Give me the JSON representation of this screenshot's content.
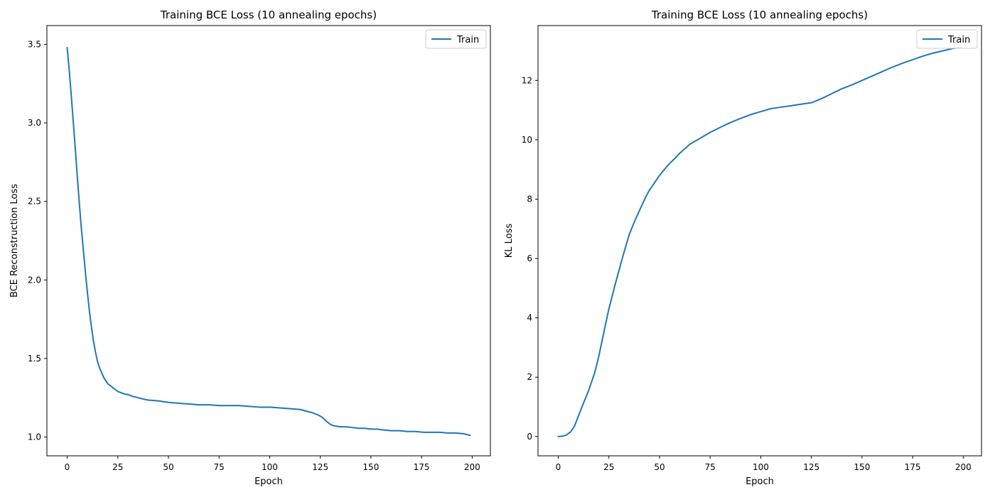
{
  "chart_data": [
    {
      "type": "line",
      "title": "Training BCE Loss (10 annealing epochs)",
      "xlabel": "Epoch",
      "ylabel": "BCE Reconstruction Loss",
      "xlim": [
        -10,
        209
      ],
      "ylim": [
        0.88,
        3.62
      ],
      "xticks": [
        0,
        25,
        50,
        75,
        100,
        125,
        150,
        175,
        200
      ],
      "yticks": [
        1.0,
        1.5,
        2.0,
        2.5,
        3.0,
        3.5
      ],
      "legend": "top-right",
      "series": [
        {
          "name": "Train",
          "color": "#1f77b4",
          "x": [
            0,
            1,
            2,
            3,
            4,
            5,
            6,
            7,
            8,
            9,
            10,
            11,
            12,
            13,
            14,
            15,
            16,
            17,
            18,
            19,
            20,
            21,
            22,
            23,
            24,
            25,
            26,
            27,
            28,
            30,
            32,
            35,
            38,
            40,
            45,
            50,
            55,
            60,
            65,
            70,
            75,
            80,
            85,
            90,
            95,
            100,
            105,
            110,
            115,
            118,
            121,
            124,
            126,
            128,
            130,
            132,
            135,
            138,
            141,
            144,
            147,
            150,
            153,
            156,
            160,
            164,
            168,
            172,
            176,
            180,
            184,
            188,
            192,
            196,
            199
          ],
          "values": [
            3.48,
            3.34,
            3.18,
            3.01,
            2.84,
            2.66,
            2.49,
            2.33,
            2.19,
            2.05,
            1.92,
            1.8,
            1.7,
            1.61,
            1.54,
            1.48,
            1.44,
            1.41,
            1.38,
            1.36,
            1.34,
            1.33,
            1.32,
            1.31,
            1.3,
            1.29,
            1.285,
            1.28,
            1.275,
            1.27,
            1.26,
            1.25,
            1.24,
            1.235,
            1.23,
            1.22,
            1.215,
            1.21,
            1.205,
            1.205,
            1.2,
            1.2,
            1.2,
            1.195,
            1.19,
            1.19,
            1.185,
            1.18,
            1.175,
            1.165,
            1.155,
            1.14,
            1.125,
            1.1,
            1.08,
            1.07,
            1.065,
            1.065,
            1.06,
            1.055,
            1.055,
            1.05,
            1.05,
            1.045,
            1.04,
            1.04,
            1.035,
            1.035,
            1.03,
            1.03,
            1.03,
            1.025,
            1.025,
            1.02,
            1.01
          ]
        }
      ]
    },
    {
      "type": "line",
      "title": "Training BCE Loss (10 annealing epochs)",
      "xlabel": "Epoch",
      "ylabel": "KL Loss",
      "xlim": [
        -10,
        209
      ],
      "ylim": [
        -0.65,
        13.85
      ],
      "xticks": [
        0,
        25,
        50,
        75,
        100,
        125,
        150,
        175,
        200
      ],
      "yticks": [
        0,
        2,
        4,
        6,
        8,
        10,
        12
      ],
      "legend": "top-right",
      "series": [
        {
          "name": "Train",
          "color": "#1f77b4",
          "x": [
            0,
            2,
            4,
            6,
            8,
            10,
            12,
            15,
            18,
            20,
            22,
            25,
            28,
            30,
            32,
            35,
            38,
            40,
            43,
            45,
            48,
            50,
            53,
            55,
            58,
            60,
            65,
            70,
            75,
            80,
            85,
            90,
            95,
            100,
            105,
            110,
            115,
            120,
            125,
            128,
            131,
            134,
            137,
            140,
            145,
            150,
            155,
            160,
            165,
            170,
            175,
            180,
            185,
            190,
            195,
            199
          ],
          "values": [
            0.0,
            0.01,
            0.05,
            0.15,
            0.35,
            0.7,
            1.05,
            1.55,
            2.15,
            2.7,
            3.35,
            4.3,
            5.1,
            5.6,
            6.1,
            6.8,
            7.3,
            7.6,
            8.05,
            8.3,
            8.6,
            8.8,
            9.05,
            9.2,
            9.4,
            9.55,
            9.85,
            10.05,
            10.25,
            10.42,
            10.58,
            10.72,
            10.85,
            10.95,
            11.05,
            11.1,
            11.15,
            11.2,
            11.25,
            11.33,
            11.42,
            11.52,
            11.62,
            11.72,
            11.85,
            12.0,
            12.15,
            12.3,
            12.45,
            12.58,
            12.7,
            12.82,
            12.92,
            13.0,
            13.08,
            13.12
          ]
        }
      ]
    }
  ]
}
